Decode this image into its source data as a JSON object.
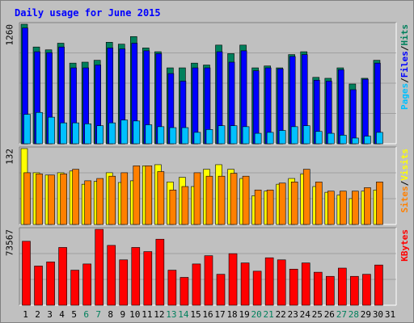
{
  "title": "Daily usage for June 2015",
  "colors": {
    "background": "#c0c0c0",
    "title": "#0000ff",
    "hits": "#00805c",
    "files": "#0000ff",
    "pages": "#00c0ff",
    "visits": "#ffff00",
    "sites": "#ff8000",
    "kbytes": "#ff0000",
    "weekday_label": "#000000",
    "weekend_label": "#00805c"
  },
  "chart_data": [
    {
      "type": "bar",
      "title": "Daily usage for June 2015",
      "right_label": [
        "Pages",
        "Files",
        "Hits"
      ],
      "ymax_label": "1260",
      "ylim": [
        0,
        1260
      ],
      "categories": [
        "1",
        "2",
        "3",
        "4",
        "5",
        "6",
        "7",
        "8",
        "9",
        "10",
        "11",
        "12",
        "13",
        "14",
        "15",
        "16",
        "17",
        "18",
        "19",
        "20",
        "21",
        "22",
        "23",
        "24",
        "25",
        "26",
        "27",
        "28",
        "29",
        "30",
        "31"
      ],
      "weekend_days": [
        "6",
        "7",
        "13",
        "14",
        "20",
        "21",
        "27",
        "28"
      ],
      "series": [
        {
          "name": "Hits",
          "values": [
            1260,
            1020,
            990,
            1060,
            850,
            860,
            880,
            1070,
            1050,
            1130,
            1010,
            970,
            800,
            800,
            850,
            830,
            1040,
            950,
            1040,
            800,
            820,
            800,
            940,
            970,
            700,
            690,
            800,
            630,
            690,
            880,
            null
          ]
        },
        {
          "name": "Files",
          "values": [
            1220,
            970,
            960,
            1020,
            800,
            800,
            830,
            1010,
            1000,
            1060,
            980,
            950,
            740,
            660,
            800,
            800,
            970,
            860,
            980,
            770,
            800,
            790,
            920,
            940,
            670,
            660,
            780,
            570,
            680,
            850,
            null
          ]
        },
        {
          "name": "Pages",
          "values": [
            310,
            330,
            280,
            220,
            220,
            210,
            190,
            220,
            250,
            240,
            200,
            180,
            170,
            170,
            120,
            150,
            190,
            190,
            180,
            110,
            120,
            140,
            180,
            190,
            130,
            110,
            90,
            60,
            80,
            120,
            null
          ]
        }
      ]
    },
    {
      "type": "bar",
      "right_label": [
        "Sites",
        "Visits"
      ],
      "ymax_label": "132",
      "ylim": [
        0,
        132
      ],
      "categories": [
        "1",
        "2",
        "3",
        "4",
        "5",
        "6",
        "7",
        "8",
        "9",
        "10",
        "11",
        "12",
        "13",
        "14",
        "15",
        "16",
        "17",
        "18",
        "19",
        "20",
        "21",
        "22",
        "23",
        "24",
        "25",
        "26",
        "27",
        "28",
        "29",
        "30",
        "31"
      ],
      "series": [
        {
          "name": "Visits",
          "values": [
            132,
            90,
            86,
            90,
            93,
            70,
            75,
            90,
            73,
            76,
            102,
            104,
            74,
            82,
            66,
            96,
            104,
            96,
            80,
            50,
            58,
            70,
            80,
            88,
            66,
            56,
            51,
            45,
            58,
            60,
            null
          ]
        },
        {
          "name": "Sites",
          "values": [
            90,
            88,
            86,
            88,
            96,
            76,
            80,
            84,
            90,
            102,
            102,
            92,
            60,
            66,
            90,
            84,
            84,
            89,
            84,
            60,
            60,
            72,
            74,
            96,
            74,
            58,
            58,
            58,
            64,
            74,
            null
          ]
        }
      ]
    },
    {
      "type": "bar",
      "right_label": [
        "KBytes"
      ],
      "ymax_label": "73567",
      "ylim": [
        0,
        73567
      ],
      "categories": [
        "1",
        "2",
        "3",
        "4",
        "5",
        "6",
        "7",
        "8",
        "9",
        "10",
        "11",
        "12",
        "13",
        "14",
        "15",
        "16",
        "17",
        "18",
        "19",
        "20",
        "21",
        "22",
        "23",
        "24",
        "25",
        "26",
        "27",
        "28",
        "29",
        "30",
        "31"
      ],
      "series": [
        {
          "name": "KBytes",
          "values": [
            62000,
            38000,
            42000,
            56000,
            34000,
            40000,
            73567,
            58000,
            44000,
            56000,
            52000,
            64000,
            34000,
            27000,
            40000,
            48000,
            30000,
            50000,
            41000,
            33000,
            46000,
            44000,
            35000,
            41000,
            32000,
            28000,
            36000,
            28000,
            30000,
            39000,
            null
          ]
        }
      ]
    }
  ]
}
